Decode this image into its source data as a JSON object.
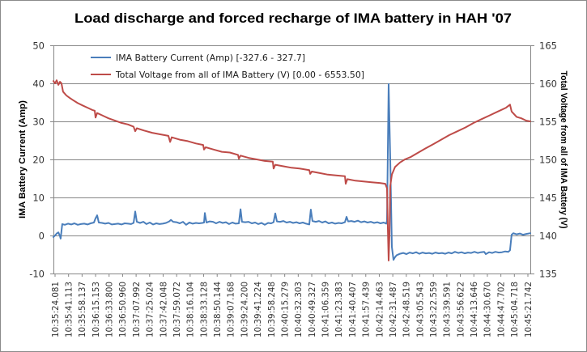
{
  "chart_data": {
    "type": "line",
    "title": "Load discharge and forced recharge of IMA battery in HAH '07",
    "grid": true,
    "legend": "top-left",
    "x": {
      "tick_labels": [
        "10:35:24.081",
        "10:35:41.113",
        "10:35:58.137",
        "10:36:15.153",
        "10:36:33.800",
        "10:36:50.960",
        "10:37:07.992",
        "10:37:25.024",
        "10:37:42.048",
        "10:37:59.072",
        "10:38:16.104",
        "10:38:33.128",
        "10:38:50.144",
        "10:39:07.168",
        "10:39:24.200",
        "10:39:41.224",
        "10:39:58.248",
        "10:40:15.279",
        "10:40:32.303",
        "10:40:49.327",
        "10:41:06.359",
        "10:41:23.383",
        "10:41:40.407",
        "10:41:57.439",
        "10:42:14.463",
        "10:42:31.487",
        "10:42:48.519",
        "10:43:05.543",
        "10:43:22.559",
        "10:43:39.591",
        "10:43:56.622",
        "10:44:13.646",
        "10:44:30.670",
        "10:44:47.702",
        "10:45:04.718",
        "10:45:21.742"
      ],
      "range": [
        0,
        35
      ]
    },
    "y_left": {
      "label": "IMA Battery Current (Amp)",
      "range": [
        -10,
        50
      ],
      "ticks": [
        -10,
        0,
        10,
        20,
        30,
        40,
        50
      ]
    },
    "y_right": {
      "label": "Total Voltage from all of IMA Battery (V)",
      "range": [
        135,
        165
      ],
      "ticks": [
        135,
        140,
        145,
        150,
        155,
        160,
        165
      ]
    },
    "series": [
      {
        "name": "IMA Battery Current (Amp) [-327.6 - 327.7]",
        "y_axis_index": 0,
        "color": "#4A7EBB",
        "points": [
          [
            0,
            -0.4
          ],
          [
            0.12,
            0
          ],
          [
            0.24,
            0.5
          ],
          [
            0.36,
            0.8
          ],
          [
            0.48,
            -0.2
          ],
          [
            0.53,
            -0.8
          ],
          [
            0.65,
            3.0
          ],
          [
            0.83,
            2.8
          ],
          [
            1.07,
            3.1
          ],
          [
            1.31,
            2.9
          ],
          [
            1.54,
            3.2
          ],
          [
            1.78,
            2.8
          ],
          [
            2.02,
            3.0
          ],
          [
            2.26,
            3.1
          ],
          [
            2.5,
            2.9
          ],
          [
            2.73,
            3.2
          ],
          [
            2.97,
            3.4
          ],
          [
            3.09,
            4.5
          ],
          [
            3.21,
            5.3
          ],
          [
            3.33,
            3.4
          ],
          [
            3.57,
            3.3
          ],
          [
            3.8,
            3.1
          ],
          [
            4.04,
            3.3
          ],
          [
            4.28,
            2.9
          ],
          [
            4.52,
            3.0
          ],
          [
            4.75,
            3.1
          ],
          [
            4.99,
            2.9
          ],
          [
            5.23,
            3.2
          ],
          [
            5.47,
            3.1
          ],
          [
            5.7,
            3.0
          ],
          [
            5.88,
            3.3
          ],
          [
            6.0,
            6.3
          ],
          [
            6.12,
            3.6
          ],
          [
            6.36,
            3.3
          ],
          [
            6.6,
            3.6
          ],
          [
            6.83,
            3.0
          ],
          [
            7.07,
            3.4
          ],
          [
            7.31,
            2.9
          ],
          [
            7.55,
            3.2
          ],
          [
            7.78,
            3.0
          ],
          [
            8.02,
            3.1
          ],
          [
            8.26,
            3.3
          ],
          [
            8.5,
            3.7
          ],
          [
            8.62,
            4.1
          ],
          [
            8.79,
            3.6
          ],
          [
            9.03,
            3.5
          ],
          [
            9.27,
            3.2
          ],
          [
            9.51,
            3.6
          ],
          [
            9.74,
            2.8
          ],
          [
            9.98,
            3.4
          ],
          [
            10.22,
            3.1
          ],
          [
            10.46,
            3.3
          ],
          [
            10.69,
            3.2
          ],
          [
            10.93,
            3.3
          ],
          [
            11.05,
            3.4
          ],
          [
            11.11,
            5.9
          ],
          [
            11.23,
            3.4
          ],
          [
            11.47,
            3.7
          ],
          [
            11.71,
            3.6
          ],
          [
            11.94,
            3.2
          ],
          [
            12.18,
            3.6
          ],
          [
            12.42,
            3.3
          ],
          [
            12.66,
            3.5
          ],
          [
            12.89,
            3.0
          ],
          [
            13.13,
            3.4
          ],
          [
            13.37,
            3.1
          ],
          [
            13.61,
            3.2
          ],
          [
            13.73,
            6.9
          ],
          [
            13.84,
            3.6
          ],
          [
            14.08,
            3.5
          ],
          [
            14.32,
            3.6
          ],
          [
            14.56,
            3.2
          ],
          [
            14.8,
            3.4
          ],
          [
            15.03,
            3.0
          ],
          [
            15.27,
            3.3
          ],
          [
            15.51,
            2.8
          ],
          [
            15.75,
            3.3
          ],
          [
            15.98,
            3.2
          ],
          [
            16.16,
            3.5
          ],
          [
            16.28,
            5.8
          ],
          [
            16.4,
            3.7
          ],
          [
            16.64,
            3.6
          ],
          [
            16.88,
            3.8
          ],
          [
            17.11,
            3.4
          ],
          [
            17.35,
            3.6
          ],
          [
            17.59,
            3.3
          ],
          [
            17.83,
            3.5
          ],
          [
            18.06,
            3.2
          ],
          [
            18.3,
            3.4
          ],
          [
            18.54,
            3.1
          ],
          [
            18.78,
            2.9
          ],
          [
            18.89,
            6.8
          ],
          [
            19.01,
            3.8
          ],
          [
            19.25,
            3.6
          ],
          [
            19.49,
            3.8
          ],
          [
            19.73,
            3.4
          ],
          [
            19.96,
            3.7
          ],
          [
            20.2,
            3.2
          ],
          [
            20.44,
            3.4
          ],
          [
            20.68,
            3.1
          ],
          [
            20.92,
            3.3
          ],
          [
            21.15,
            3.2
          ],
          [
            21.39,
            3.5
          ],
          [
            21.51,
            4.9
          ],
          [
            21.63,
            3.7
          ],
          [
            21.87,
            3.8
          ],
          [
            22.1,
            3.6
          ],
          [
            22.34,
            3.9
          ],
          [
            22.58,
            3.5
          ],
          [
            22.82,
            3.7
          ],
          [
            23.05,
            3.4
          ],
          [
            23.29,
            3.6
          ],
          [
            23.53,
            3.3
          ],
          [
            23.77,
            3.5
          ],
          [
            24.0,
            3.2
          ],
          [
            24.24,
            3.4
          ],
          [
            24.42,
            3.1
          ],
          [
            24.48,
            3.9
          ],
          [
            24.6,
            39.8
          ],
          [
            24.72,
            20.0
          ],
          [
            24.84,
            -3.0
          ],
          [
            24.96,
            -6.4
          ],
          [
            25.07,
            -5.7
          ],
          [
            25.19,
            -5.2
          ],
          [
            25.43,
            -4.8
          ],
          [
            25.67,
            -4.6
          ],
          [
            25.91,
            -4.9
          ],
          [
            26.14,
            -4.5
          ],
          [
            26.38,
            -4.7
          ],
          [
            26.62,
            -4.4
          ],
          [
            26.86,
            -4.8
          ],
          [
            27.09,
            -4.5
          ],
          [
            27.33,
            -4.7
          ],
          [
            27.57,
            -4.6
          ],
          [
            27.81,
            -4.8
          ],
          [
            28.04,
            -4.5
          ],
          [
            28.28,
            -4.7
          ],
          [
            28.52,
            -4.6
          ],
          [
            28.76,
            -4.8
          ],
          [
            29.0,
            -4.5
          ],
          [
            29.23,
            -4.7
          ],
          [
            29.47,
            -4.3
          ],
          [
            29.71,
            -4.6
          ],
          [
            29.95,
            -4.4
          ],
          [
            30.18,
            -4.7
          ],
          [
            30.42,
            -4.5
          ],
          [
            30.66,
            -4.6
          ],
          [
            30.9,
            -4.3
          ],
          [
            31.14,
            -4.6
          ],
          [
            31.37,
            -4.4
          ],
          [
            31.61,
            -4.3
          ],
          [
            31.73,
            -4.9
          ],
          [
            31.97,
            -4.4
          ],
          [
            32.21,
            -4.6
          ],
          [
            32.44,
            -4.3
          ],
          [
            32.68,
            -4.5
          ],
          [
            32.92,
            -4.4
          ],
          [
            33.16,
            -4.2
          ],
          [
            33.39,
            -4.3
          ],
          [
            33.51,
            -3.9
          ],
          [
            33.63,
            0.2
          ],
          [
            33.75,
            0.6
          ],
          [
            33.99,
            0.3
          ],
          [
            34.23,
            0.5
          ],
          [
            34.46,
            0.2
          ],
          [
            34.7,
            0.4
          ],
          [
            35.0,
            0.6
          ]
        ]
      },
      {
        "name": "Total Voltage from all of IMA Battery (V) [0.00 - 6553.50]",
        "y_axis_index": 1,
        "color": "#BE4B48",
        "points": [
          [
            0,
            160.3
          ],
          [
            0.12,
            160.0
          ],
          [
            0.24,
            160.4
          ],
          [
            0.36,
            159.8
          ],
          [
            0.48,
            160.2
          ],
          [
            0.59,
            160.0
          ],
          [
            0.71,
            158.9
          ],
          [
            0.95,
            158.4
          ],
          [
            1.19,
            158.1
          ],
          [
            1.43,
            157.8
          ],
          [
            1.78,
            157.4
          ],
          [
            2.14,
            157.1
          ],
          [
            2.5,
            156.8
          ],
          [
            2.85,
            156.5
          ],
          [
            3.03,
            156.4
          ],
          [
            3.09,
            155.5
          ],
          [
            3.21,
            156.1
          ],
          [
            3.57,
            155.8
          ],
          [
            4.04,
            155.4
          ],
          [
            4.52,
            155.1
          ],
          [
            4.99,
            154.8
          ],
          [
            5.47,
            154.6
          ],
          [
            5.88,
            154.3
          ],
          [
            6.0,
            153.7
          ],
          [
            6.12,
            154.1
          ],
          [
            6.65,
            153.8
          ],
          [
            7.25,
            153.5
          ],
          [
            7.84,
            153.3
          ],
          [
            8.44,
            153.1
          ],
          [
            8.56,
            152.3
          ],
          [
            8.68,
            152.9
          ],
          [
            9.27,
            152.6
          ],
          [
            9.86,
            152.4
          ],
          [
            10.46,
            152.1
          ],
          [
            10.99,
            151.9
          ],
          [
            11.05,
            151.3
          ],
          [
            11.17,
            151.6
          ],
          [
            11.76,
            151.3
          ],
          [
            12.36,
            151.0
          ],
          [
            12.95,
            150.9
          ],
          [
            13.55,
            150.6
          ],
          [
            13.61,
            150.1
          ],
          [
            13.73,
            150.5
          ],
          [
            14.32,
            150.2
          ],
          [
            14.92,
            150.0
          ],
          [
            15.51,
            149.8
          ],
          [
            16.1,
            149.7
          ],
          [
            16.16,
            148.8
          ],
          [
            16.28,
            149.3
          ],
          [
            16.88,
            149.1
          ],
          [
            17.47,
            148.9
          ],
          [
            18.06,
            148.8
          ],
          [
            18.78,
            148.6
          ],
          [
            18.84,
            148.1
          ],
          [
            18.96,
            148.4
          ],
          [
            19.55,
            148.2
          ],
          [
            20.14,
            148.0
          ],
          [
            20.74,
            147.9
          ],
          [
            21.39,
            147.8
          ],
          [
            21.45,
            146.8
          ],
          [
            21.57,
            147.4
          ],
          [
            22.16,
            147.2
          ],
          [
            22.76,
            147.1
          ],
          [
            23.35,
            147.0
          ],
          [
            23.95,
            146.9
          ],
          [
            24.36,
            146.8
          ],
          [
            24.48,
            146.2
          ],
          [
            24.54,
            141.0
          ],
          [
            24.6,
            136.7
          ],
          [
            24.66,
            140.0
          ],
          [
            24.72,
            146.5
          ],
          [
            24.84,
            148.0
          ],
          [
            25.07,
            149.0
          ],
          [
            25.43,
            149.6
          ],
          [
            25.79,
            150.0
          ],
          [
            26.2,
            150.3
          ],
          [
            26.68,
            150.8
          ],
          [
            27.27,
            151.4
          ],
          [
            27.87,
            152.0
          ],
          [
            28.46,
            152.6
          ],
          [
            29.06,
            153.2
          ],
          [
            29.65,
            153.7
          ],
          [
            30.24,
            154.2
          ],
          [
            30.84,
            154.8
          ],
          [
            31.43,
            155.3
          ],
          [
            32.03,
            155.8
          ],
          [
            32.62,
            156.3
          ],
          [
            33.22,
            156.8
          ],
          [
            33.51,
            157.2
          ],
          [
            33.63,
            156.3
          ],
          [
            33.99,
            155.6
          ],
          [
            34.34,
            155.4
          ],
          [
            34.7,
            155.1
          ],
          [
            35.0,
            155.0
          ]
        ]
      }
    ]
  }
}
